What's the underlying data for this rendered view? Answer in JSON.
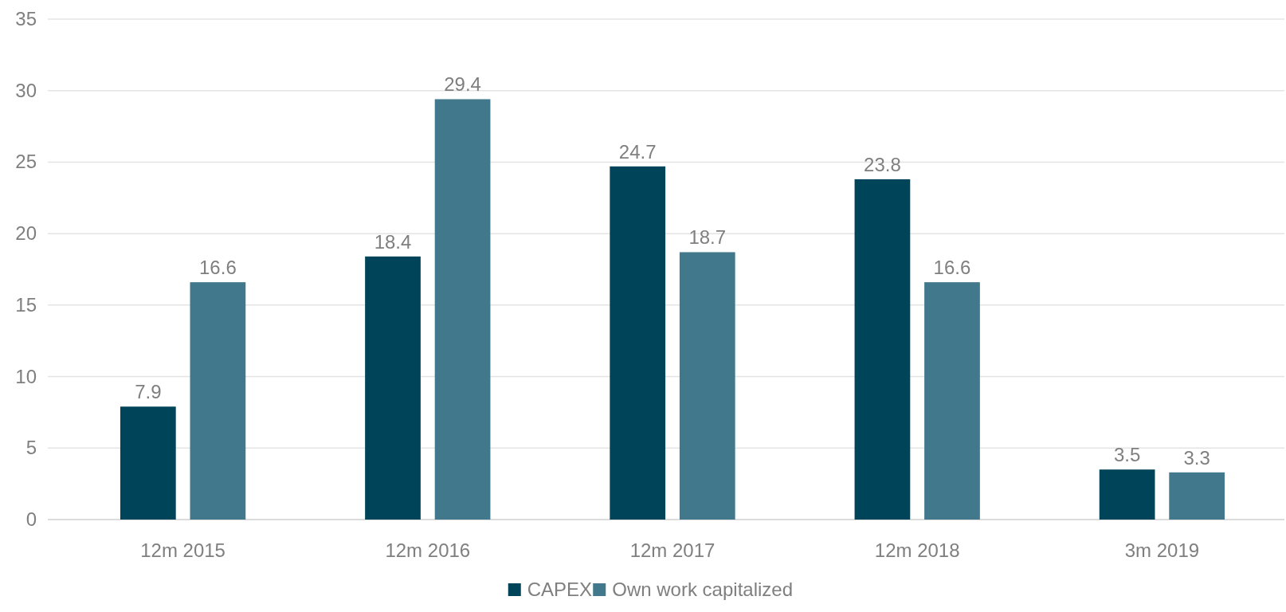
{
  "chart_data": {
    "type": "bar",
    "categories": [
      "12m 2015",
      "12m 2016",
      "12m 2017",
      "12m 2018",
      "3m 2019"
    ],
    "series": [
      {
        "name": "CAPEX",
        "color": "#004459",
        "values": [
          7.9,
          18.4,
          24.7,
          23.8,
          3.5
        ]
      },
      {
        "name": "Own work capitalized",
        "color": "#41788c",
        "values": [
          16.6,
          29.4,
          18.7,
          16.6,
          3.3
        ]
      }
    ],
    "ylim": [
      0,
      35
    ],
    "yticks": [
      0,
      5,
      10,
      15,
      20,
      25,
      30,
      35
    ],
    "grid": "y",
    "legend": "bottom",
    "data_labels": true
  }
}
